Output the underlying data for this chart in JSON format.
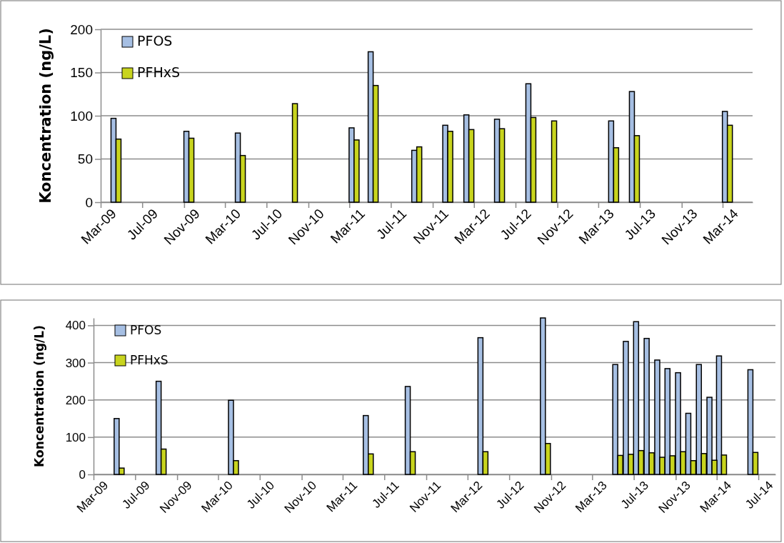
{
  "chart_data": [
    {
      "type": "bar",
      "ylabel": "Koncentration  (ng/L)",
      "x": [
        "2009-04-15",
        "2009-11-15",
        "2010-04-15",
        "2010-09-15",
        "2011-03-15",
        "2011-05-10",
        "2011-09-15",
        "2011-12-15",
        "2012-02-15",
        "2012-05-15",
        "2012-08-15",
        "2012-10-15",
        "2013-04-15",
        "2013-06-15",
        "2014-03-15"
      ],
      "series": [
        {
          "name": "PFOS",
          "color": "#a6bfe3",
          "values": [
            97,
            82,
            80,
            null,
            86,
            174,
            60,
            89,
            101,
            96,
            137,
            null,
            94,
            128,
            105
          ]
        },
        {
          "name": "PFHxS",
          "color": "#c8d41e",
          "values": [
            73,
            74,
            54,
            114,
            72,
            135,
            64,
            82,
            84,
            85,
            98,
            94,
            63,
            77,
            89
          ]
        }
      ],
      "xlim": [
        "2009-03-01",
        "2014-05-28"
      ],
      "xticks": [
        {
          "value": "2009-03-01",
          "label": "Mar-09"
        },
        {
          "value": "2009-07-01",
          "label": "Jul-09"
        },
        {
          "value": "2009-11-01",
          "label": "Nov-09"
        },
        {
          "value": "2010-03-01",
          "label": "Mar-10"
        },
        {
          "value": "2010-07-01",
          "label": "Jul-10"
        },
        {
          "value": "2010-11-01",
          "label": "Nov-10"
        },
        {
          "value": "2011-03-01",
          "label": "Mar-11"
        },
        {
          "value": "2011-07-01",
          "label": "Jul-11"
        },
        {
          "value": "2011-11-01",
          "label": "Nov-11"
        },
        {
          "value": "2012-03-01",
          "label": "Mar-12"
        },
        {
          "value": "2012-07-01",
          "label": "Jul-12"
        },
        {
          "value": "2012-11-01",
          "label": "Nov-12"
        },
        {
          "value": "2013-03-01",
          "label": "Mar-13"
        },
        {
          "value": "2013-07-01",
          "label": "Jul-13"
        },
        {
          "value": "2013-11-01",
          "label": "Nov-13"
        },
        {
          "value": "2014-03-01",
          "label": "Mar-14"
        }
      ],
      "ylim": [
        0,
        200
      ],
      "yticks": [
        0,
        50,
        100,
        150,
        200
      ],
      "grid": "y",
      "legend": "top left"
    },
    {
      "type": "bar",
      "ylabel": "Koncentration  (ng/L)",
      "x": [
        "2009-05-15",
        "2009-09-15",
        "2010-04-15",
        "2011-05-15",
        "2011-09-15",
        "2012-04-15",
        "2012-10-15",
        "2013-05-15",
        "2013-06-15",
        "2013-07-15",
        "2013-08-15",
        "2013-09-15",
        "2013-10-15",
        "2013-11-15",
        "2013-12-15",
        "2014-01-15",
        "2014-02-15",
        "2014-03-15",
        "2014-06-15"
      ],
      "series": [
        {
          "name": "PFOS",
          "color": "#a6bfe3",
          "values": [
            150,
            250,
            199,
            158,
            236,
            367,
            420,
            295,
            357,
            410,
            365,
            307,
            284,
            273,
            164,
            295,
            207,
            318,
            281
          ]
        },
        {
          "name": "PFHxS",
          "color": "#c8d41e",
          "values": [
            17,
            68,
            37,
            55,
            61,
            61,
            83,
            51,
            54,
            64,
            58,
            46,
            50,
            61,
            37,
            56,
            38,
            52,
            59
          ]
        }
      ],
      "xlim": [
        "2009-03-01",
        "2014-08-20"
      ],
      "xticks": [
        {
          "value": "2009-03-01",
          "label": "Mar-09"
        },
        {
          "value": "2009-07-01",
          "label": "Jul-09"
        },
        {
          "value": "2009-11-01",
          "label": "Nov-09"
        },
        {
          "value": "2010-03-01",
          "label": "Mar-10"
        },
        {
          "value": "2010-07-01",
          "label": "Jul-10"
        },
        {
          "value": "2010-11-01",
          "label": "Nov-10"
        },
        {
          "value": "2011-03-01",
          "label": "Mar-11"
        },
        {
          "value": "2011-07-01",
          "label": "Jul-11"
        },
        {
          "value": "2011-11-01",
          "label": "Nov-11"
        },
        {
          "value": "2012-03-01",
          "label": "Mar-12"
        },
        {
          "value": "2012-07-01",
          "label": "Jul-12"
        },
        {
          "value": "2012-11-01",
          "label": "Nov-12"
        },
        {
          "value": "2013-03-01",
          "label": "Mar-13"
        },
        {
          "value": "2013-07-01",
          "label": "Jul-13"
        },
        {
          "value": "2013-11-01",
          "label": "Nov-13"
        },
        {
          "value": "2014-03-01",
          "label": "Mar-14"
        },
        {
          "value": "2014-07-01",
          "label": "Jul-14"
        }
      ],
      "ylim": [
        0,
        420
      ],
      "yticks": [
        0,
        100,
        200,
        300,
        400
      ],
      "grid": "y",
      "legend": "top left"
    }
  ]
}
